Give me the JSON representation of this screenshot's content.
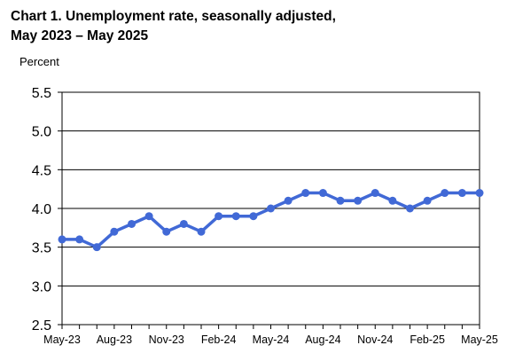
{
  "chart_data": {
    "type": "line",
    "title_line1": "Chart 1. Unemployment rate, seasonally adjusted,",
    "title_line2": "May 2023 – May 2025",
    "xlabel": "",
    "ylabel": "Percent",
    "ylim": [
      2.5,
      5.5
    ],
    "y_ticks": [
      "2.5",
      "3.0",
      "3.5",
      "4.0",
      "4.5",
      "5.0",
      "5.5"
    ],
    "x_tick_labels": [
      "May-23",
      "Aug-23",
      "Nov-23",
      "Feb-24",
      "May-24",
      "Aug-24",
      "Nov-24",
      "Feb-25",
      "May-25"
    ],
    "grid": "horizontal",
    "series_color": "#4169D6",
    "x": [
      "May-23",
      "Jun-23",
      "Jul-23",
      "Aug-23",
      "Sep-23",
      "Oct-23",
      "Nov-23",
      "Dec-23",
      "Jan-24",
      "Feb-24",
      "Mar-24",
      "Apr-24",
      "May-24",
      "Jun-24",
      "Jul-24",
      "Aug-24",
      "Sep-24",
      "Oct-24",
      "Nov-24",
      "Dec-24",
      "Jan-25",
      "Feb-25",
      "Mar-25",
      "Apr-25",
      "May-25"
    ],
    "series": [
      {
        "values": [
          3.6,
          3.6,
          3.5,
          3.7,
          3.8,
          3.9,
          3.7,
          3.8,
          3.7,
          3.9,
          3.9,
          3.9,
          4.0,
          4.1,
          4.2,
          4.2,
          4.1,
          4.1,
          4.2,
          4.1,
          4.0,
          4.1,
          4.2,
          4.2,
          4.2
        ]
      }
    ]
  }
}
